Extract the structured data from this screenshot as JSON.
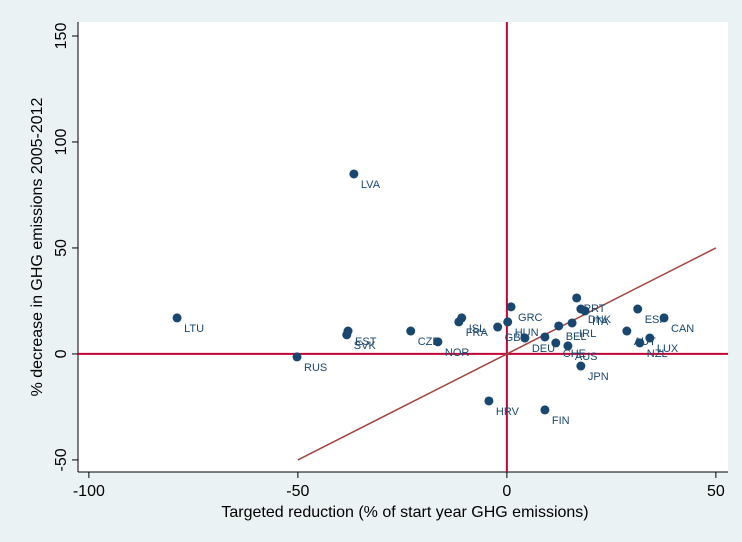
{
  "chart_data": {
    "type": "scatter",
    "x_label": "Targeted reduction (% of start year GHG emissions)",
    "y_label": "% decrease in GHG emissions 2005-2012",
    "series": [
      {
        "color": "#1a476f",
        "labels": [
          "LVA",
          "LTU",
          "RUS",
          "EST",
          "SVK",
          "CZE",
          "NOR",
          "ISL",
          "FRA",
          "GBR",
          "GRC",
          "HUN",
          "DEU",
          null,
          "BEL",
          "CHE",
          "AUS",
          "IRL",
          "JPN",
          "PRT",
          "DNK",
          "ITA",
          "ESP",
          "CAN",
          "AUT",
          "NZL",
          "LUX",
          "HRV",
          "FIN"
        ],
        "x": [
          -36.6,
          -78.9,
          -50.2,
          -38.0,
          -38.3,
          -23.0,
          -16.5,
          -10.8,
          -11.5,
          -2.2,
          1.0,
          0.2,
          4.3,
          9.1,
          12.4,
          11.7,
          14.6,
          15.6,
          17.7,
          16.7,
          17.7,
          18.7,
          31.3,
          37.6,
          28.7,
          31.8,
          34.2,
          -4.3,
          9.1
        ],
        "values": [
          84.9,
          17.0,
          -1.4,
          10.8,
          9.0,
          10.8,
          5.7,
          17.0,
          15.1,
          12.7,
          22.2,
          15.1,
          7.5,
          8.0,
          13.2,
          5.2,
          3.8,
          14.6,
          -5.7,
          26.4,
          21.2,
          20.3,
          21.2,
          17.0,
          10.8,
          5.2,
          7.5,
          -22.2,
          -26.4
        ]
      }
    ],
    "hline": 0,
    "vline": 0,
    "reference_color": "#c10534",
    "diagonal": {
      "x": [
        -50,
        50
      ],
      "y": [
        -50,
        50
      ],
      "color": "#a0453f"
    },
    "xlim": [
      -102.6,
      52.9
    ],
    "ylim": [
      -55.7,
      156.6
    ],
    "xticks": [
      -100,
      -50,
      0,
      50
    ],
    "yticks": [
      -50,
      0,
      50,
      100,
      150
    ]
  }
}
